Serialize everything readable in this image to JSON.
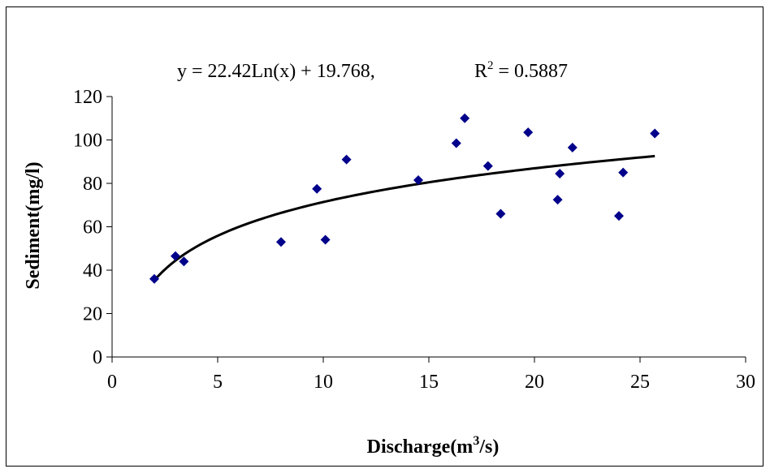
{
  "chart_data": {
    "type": "scatter",
    "equation": "y = 22.42Ln(x) + 19.768,",
    "r2_label": "R",
    "r2_sup": "2",
    "r2_value": " = 0.5887",
    "xlabel": "Discharge(m",
    "xlabel_sup": "3",
    "xlabel_tail": "/s)",
    "ylabel": "Sediment(mg/l)",
    "xlim": [
      0,
      30
    ],
    "ylim": [
      0,
      120
    ],
    "xticks": [
      "0",
      "5",
      "10",
      "15",
      "20",
      "25",
      "30"
    ],
    "yticks": [
      "0",
      "20",
      "40",
      "60",
      "80",
      "100",
      "120"
    ],
    "marker_color": "#00008B",
    "trendline_color": "#000000",
    "trendline": {
      "type": "log",
      "a": 22.42,
      "b": 19.768,
      "x_range": [
        2.0,
        25.7
      ]
    },
    "series": [
      {
        "points": [
          [
            2.0,
            36
          ],
          [
            3.0,
            46.5
          ],
          [
            3.4,
            44
          ],
          [
            8.0,
            53
          ],
          [
            9.7,
            77.5
          ],
          [
            10.1,
            54
          ],
          [
            11.1,
            91
          ],
          [
            14.5,
            81.5
          ],
          [
            16.3,
            98.5
          ],
          [
            16.7,
            110
          ],
          [
            17.8,
            88
          ],
          [
            18.4,
            66
          ],
          [
            19.7,
            103.5
          ],
          [
            21.1,
            72.5
          ],
          [
            21.2,
            84.5
          ],
          [
            21.8,
            96.5
          ],
          [
            24.0,
            65
          ],
          [
            24.2,
            85
          ],
          [
            25.7,
            103
          ]
        ]
      }
    ]
  }
}
